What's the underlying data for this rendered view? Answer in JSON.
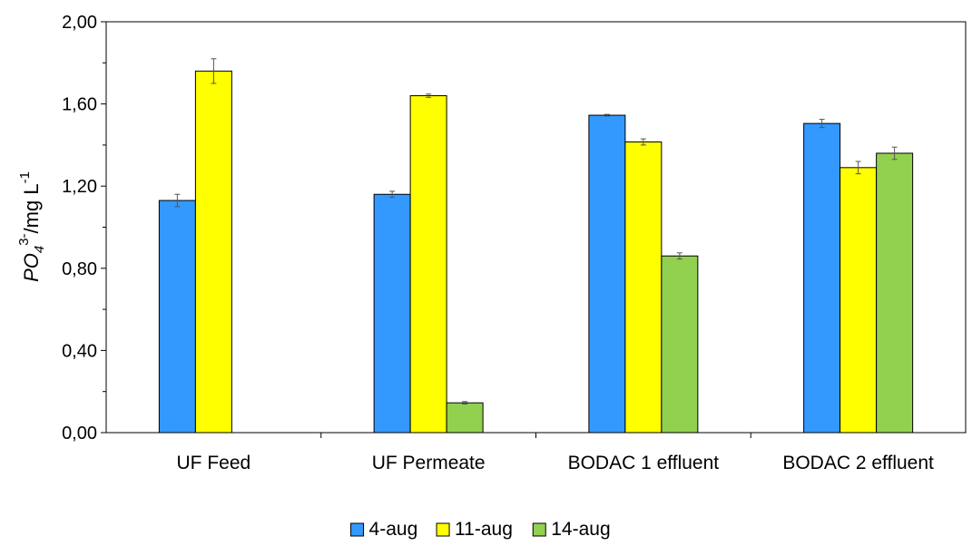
{
  "chart_data": {
    "type": "bar",
    "categories": [
      "UF Feed",
      "UF Permeate",
      "BODAC 1 effluent",
      "BODAC 2 effluent"
    ],
    "series": [
      {
        "name": "4-aug",
        "color": "#3399ff",
        "values": [
          1.13,
          1.16,
          1.545,
          1.505
        ],
        "errors": [
          0.03,
          0.015,
          0.004,
          0.02
        ]
      },
      {
        "name": "11-aug",
        "color": "#ffff00",
        "values": [
          1.76,
          1.64,
          1.415,
          1.29
        ],
        "errors": [
          0.06,
          0.008,
          0.015,
          0.03
        ]
      },
      {
        "name": "14-aug",
        "color": "#92d050",
        "values": [
          0,
          0.145,
          0.86,
          1.36
        ],
        "errors": [
          0,
          0.006,
          0.015,
          0.03
        ]
      }
    ],
    "yticks": [
      "0,00",
      "0,40",
      "0,80",
      "1,20",
      "1,60",
      "2,00"
    ],
    "ytick_values": [
      0,
      0.4,
      0.8,
      1.2,
      1.6,
      2.0
    ],
    "ylim": [
      0,
      2.0
    ],
    "ylabel": {
      "base": "PO",
      "sub": "4",
      "sup": "3-",
      "unit": "/mg L",
      "unit_sup": "-1"
    },
    "legend_position": "bottom-center",
    "grid": false
  }
}
